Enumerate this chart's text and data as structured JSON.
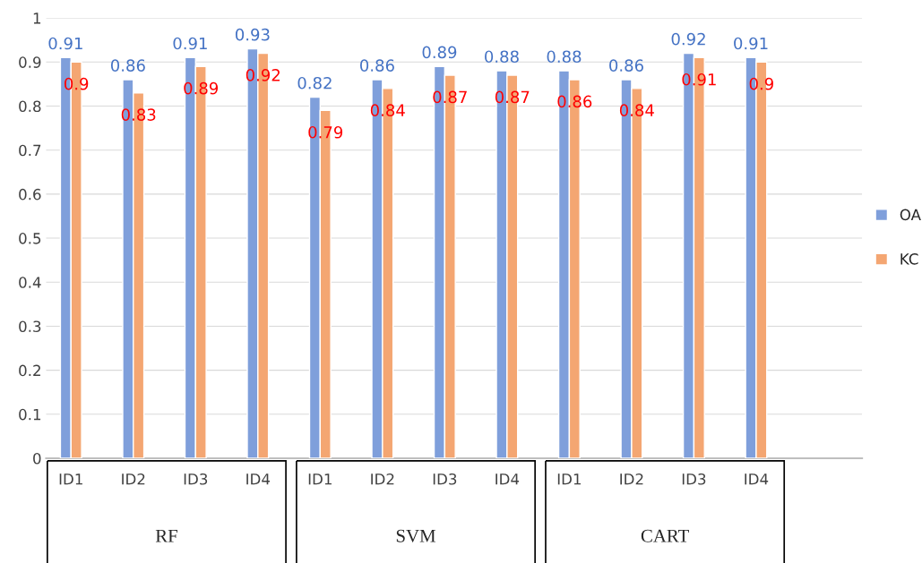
{
  "chart_data": {
    "type": "bar",
    "categories": [
      "ID1",
      "ID2",
      "ID3",
      "ID4",
      "ID1",
      "ID2",
      "ID3",
      "ID4",
      "ID1",
      "ID2",
      "ID3",
      "ID4"
    ],
    "series": [
      {
        "name": "OA",
        "color": "#7f9fdb",
        "values": [
          0.91,
          0.86,
          0.91,
          0.93,
          0.82,
          0.86,
          0.89,
          0.88,
          0.88,
          0.86,
          0.92,
          0.91
        ]
      },
      {
        "name": "KC",
        "color": "#f4a672",
        "values": [
          0.9,
          0.83,
          0.89,
          0.92,
          0.79,
          0.84,
          0.87,
          0.87,
          0.86,
          0.84,
          0.91,
          0.9
        ]
      }
    ],
    "annotations": [
      "RF",
      "SVM",
      "CART"
    ],
    "ylim": [
      0,
      1
    ],
    "yticks": [
      0,
      0.1,
      0.2,
      0.3,
      0.4,
      0.5,
      0.6,
      0.7,
      0.8,
      0.9,
      1
    ],
    "grid": "y",
    "legend": "right",
    "data_labels": true
  }
}
